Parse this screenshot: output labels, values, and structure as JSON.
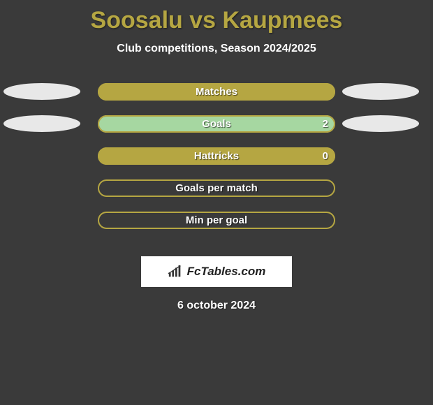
{
  "title": "Soosalu vs Kaupmees",
  "subtitle": "Club competitions, Season 2024/2025",
  "date": "6 october 2024",
  "logo_text": "FcTables.com",
  "colors": {
    "background": "#3a3a3a",
    "accent": "#b5a642",
    "accent_border": "#b5a642",
    "ellipse": "#e8e8e8",
    "fill_matches": "#b5a642",
    "fill_goals": "#a6d7a1",
    "fill_hattricks": "#b5a642",
    "text_white": "#ffffff"
  },
  "rows": [
    {
      "label": "Matches",
      "value": "",
      "fill_percent": 100,
      "fill_color": "#b5a642",
      "show_left_ellipse": true,
      "show_right_ellipse": true
    },
    {
      "label": "Goals",
      "value": "2",
      "fill_percent": 100,
      "fill_color": "#a6d7a1",
      "show_left_ellipse": true,
      "show_right_ellipse": true
    },
    {
      "label": "Hattricks",
      "value": "0",
      "fill_percent": 100,
      "fill_color": "#b5a642",
      "show_left_ellipse": false,
      "show_right_ellipse": false
    },
    {
      "label": "Goals per match",
      "value": "",
      "fill_percent": 0,
      "fill_color": "#b5a642",
      "show_left_ellipse": false,
      "show_right_ellipse": false
    },
    {
      "label": "Min per goal",
      "value": "",
      "fill_percent": 0,
      "fill_color": "#b5a642",
      "show_left_ellipse": false,
      "show_right_ellipse": false
    }
  ]
}
